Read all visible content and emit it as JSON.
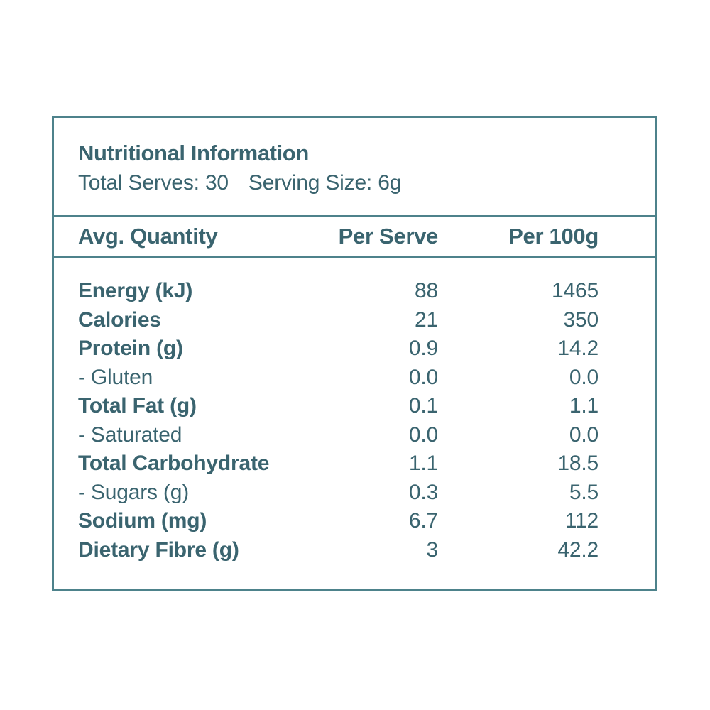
{
  "colors": {
    "text": "#3A646F",
    "border": "#4D828B",
    "background": "#FFFFFF"
  },
  "header": {
    "title": "Nutritional Information",
    "total_serves": "Total Serves: 30",
    "serving_size": "Serving Size: 6g"
  },
  "table": {
    "columns": [
      "Avg. Quantity",
      "Per Serve",
      "Per 100g"
    ],
    "rows": [
      {
        "label": "Energy (kJ)",
        "per_serve": "88",
        "per_100g": "1465",
        "sub": false
      },
      {
        "label": "Calories",
        "per_serve": "21",
        "per_100g": "350",
        "sub": false
      },
      {
        "label": "Protein (g)",
        "per_serve": "0.9",
        "per_100g": "14.2",
        "sub": false
      },
      {
        "label": "- Gluten",
        "per_serve": "0.0",
        "per_100g": "0.0",
        "sub": true
      },
      {
        "label": "Total Fat (g)",
        "per_serve": "0.1",
        "per_100g": "1.1",
        "sub": false
      },
      {
        "label": "- Saturated",
        "per_serve": "0.0",
        "per_100g": "0.0",
        "sub": true
      },
      {
        "label": "Total Carbohydrate",
        "per_serve": "1.1",
        "per_100g": "18.5",
        "sub": false
      },
      {
        "label": "- Sugars (g)",
        "per_serve": "0.3",
        "per_100g": "5.5",
        "sub": true
      },
      {
        "label": "Sodium (mg)",
        "per_serve": "6.7",
        "per_100g": "112",
        "sub": false
      },
      {
        "label": "Dietary Fibre (g)",
        "per_serve": "3",
        "per_100g": "42.2",
        "sub": false
      }
    ]
  }
}
